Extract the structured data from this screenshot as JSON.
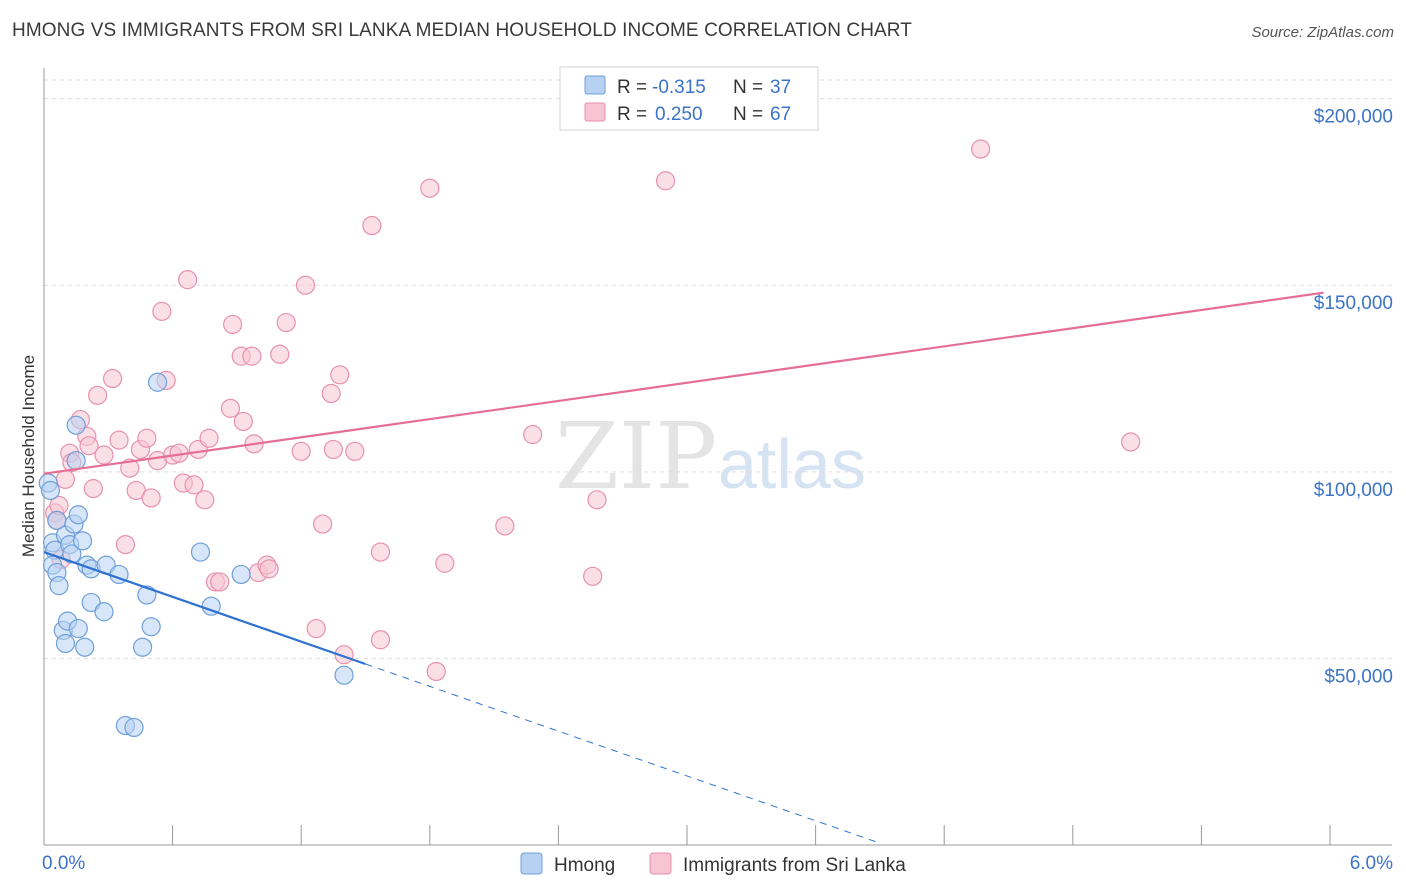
{
  "title": "HMONG VS IMMIGRANTS FROM SRI LANKA MEDIAN HOUSEHOLD INCOME CORRELATION CHART",
  "source": "Source: ZipAtlas.com",
  "watermark": {
    "zip": "ZIP",
    "atlas": "atlas"
  },
  "legend_box": {
    "row1": {
      "r_label": "R = ",
      "r_value": "-0.315",
      "n_label": "N = ",
      "n_value": "37"
    },
    "row2": {
      "r_label": "R = ",
      "r_value": "0.250",
      "n_label": "N = ",
      "n_value": "67"
    }
  },
  "bottom_legend": {
    "series1": "Hmong",
    "series2": "Immigrants from Sri Lanka"
  },
  "colors": {
    "hmong_fill": "#b7d1f3",
    "hmong_stroke": "#6f9fd8",
    "hmong_line": "#2f72d0",
    "sri_fill": "#f7c4d3",
    "sri_stroke": "#e891ac",
    "sri_line": "#e56e96",
    "tick_text": "#3b73c8",
    "grid": "#dddddd"
  },
  "chart_data": {
    "type": "scatter",
    "title": "HMONG VS IMMIGRANTS FROM SRI LANKA MEDIAN HOUSEHOLD INCOME CORRELATION CHART",
    "xlabel": "",
    "ylabel": "Median Household Income",
    "xlim": [
      0,
      6
    ],
    "ylim": [
      0,
      205000
    ],
    "x_tick_labels": [
      "0.0%",
      "6.0%"
    ],
    "y_ticks": [
      50000,
      100000,
      150000,
      200000
    ],
    "y_tick_labels": [
      "$50,000",
      "$100,000",
      "$150,000",
      "$200,000"
    ],
    "grid": true,
    "series": [
      {
        "name": "Hmong",
        "r": -0.315,
        "n": 37,
        "trend": {
          "x0": 0.0,
          "y0": 78500,
          "x1": 1.5,
          "y1": 48500,
          "dashed_to_x": 3.9
        },
        "points": [
          [
            0.02,
            97000
          ],
          [
            0.03,
            95000
          ],
          [
            0.04,
            81000
          ],
          [
            0.05,
            79000
          ],
          [
            0.04,
            75000
          ],
          [
            0.06,
            73000
          ],
          [
            0.07,
            69500
          ],
          [
            0.06,
            87000
          ],
          [
            0.1,
            83000
          ],
          [
            0.12,
            80500
          ],
          [
            0.13,
            78000
          ],
          [
            0.14,
            86000
          ],
          [
            0.15,
            103000
          ],
          [
            0.15,
            112500
          ],
          [
            0.16,
            88500
          ],
          [
            0.18,
            81500
          ],
          [
            0.2,
            75000
          ],
          [
            0.22,
            74000
          ],
          [
            0.09,
            57500
          ],
          [
            0.1,
            54000
          ],
          [
            0.11,
            60000
          ],
          [
            0.16,
            58000
          ],
          [
            0.19,
            53000
          ],
          [
            0.22,
            65000
          ],
          [
            0.28,
            62500
          ],
          [
            0.29,
            75000
          ],
          [
            0.35,
            72500
          ],
          [
            0.48,
            67000
          ],
          [
            0.5,
            58500
          ],
          [
            0.46,
            53000
          ],
          [
            0.53,
            124000
          ],
          [
            0.73,
            78500
          ],
          [
            0.78,
            64000
          ],
          [
            0.92,
            72500
          ],
          [
            1.4,
            45500
          ],
          [
            0.38,
            32000
          ],
          [
            0.42,
            31500
          ]
        ]
      },
      {
        "name": "Immigrants from Sri Lanka",
        "r": 0.25,
        "n": 67,
        "trend": {
          "x0": 0.0,
          "y0": 99500,
          "x1": 5.97,
          "y1": 148000
        },
        "points": [
          [
            0.05,
            89000
          ],
          [
            0.06,
            87000
          ],
          [
            0.07,
            91000
          ],
          [
            0.08,
            76500
          ],
          [
            0.1,
            98000
          ],
          [
            0.12,
            105000
          ],
          [
            0.13,
            102500
          ],
          [
            0.17,
            114000
          ],
          [
            0.2,
            109500
          ],
          [
            0.21,
            107000
          ],
          [
            0.23,
            95500
          ],
          [
            0.25,
            120500
          ],
          [
            0.28,
            104500
          ],
          [
            0.32,
            125000
          ],
          [
            0.35,
            108500
          ],
          [
            0.38,
            80500
          ],
          [
            0.4,
            101000
          ],
          [
            0.43,
            95000
          ],
          [
            0.45,
            106000
          ],
          [
            0.48,
            109000
          ],
          [
            0.5,
            93000
          ],
          [
            0.53,
            103000
          ],
          [
            0.55,
            143000
          ],
          [
            0.57,
            124500
          ],
          [
            0.6,
            104500
          ],
          [
            0.63,
            105000
          ],
          [
            0.65,
            97000
          ],
          [
            0.67,
            151500
          ],
          [
            0.7,
            96500
          ],
          [
            0.72,
            106000
          ],
          [
            0.75,
            92500
          ],
          [
            0.77,
            109000
          ],
          [
            0.8,
            70500
          ],
          [
            0.82,
            70500
          ],
          [
            0.87,
            117000
          ],
          [
            0.88,
            139500
          ],
          [
            0.92,
            131000
          ],
          [
            0.93,
            113500
          ],
          [
            0.97,
            131000
          ],
          [
            0.98,
            107500
          ],
          [
            1.0,
            73000
          ],
          [
            1.04,
            75000
          ],
          [
            1.05,
            74000
          ],
          [
            1.1,
            131500
          ],
          [
            1.13,
            140000
          ],
          [
            1.2,
            105500
          ],
          [
            1.22,
            150000
          ],
          [
            1.27,
            58000
          ],
          [
            1.3,
            86000
          ],
          [
            1.34,
            121000
          ],
          [
            1.35,
            106000
          ],
          [
            1.38,
            126000
          ],
          [
            1.4,
            51000
          ],
          [
            1.45,
            105500
          ],
          [
            1.53,
            166000
          ],
          [
            1.57,
            78500
          ],
          [
            1.57,
            55000
          ],
          [
            1.8,
            176000
          ],
          [
            1.83,
            46500
          ],
          [
            1.87,
            75500
          ],
          [
            2.15,
            85500
          ],
          [
            2.28,
            110000
          ],
          [
            2.56,
            72000
          ],
          [
            2.58,
            92500
          ],
          [
            2.9,
            178000
          ],
          [
            4.37,
            186500
          ],
          [
            5.07,
            108000
          ]
        ]
      }
    ]
  }
}
